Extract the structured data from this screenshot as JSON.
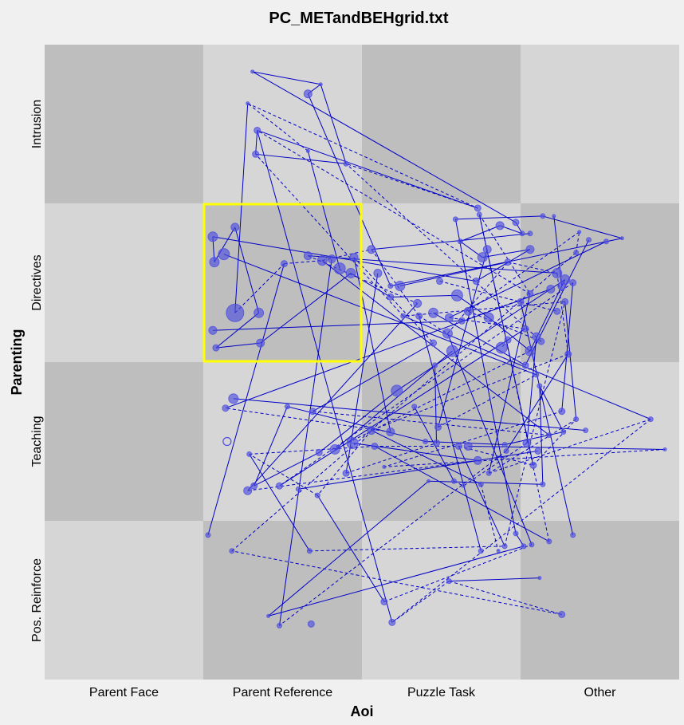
{
  "title": "PC_METandBEHgrid.txt",
  "colors": {
    "background": "#f0f0f0",
    "cell_light": "#d6d6d6",
    "cell_dark": "#bebebe",
    "highlight": "#ffff00",
    "path": "#0000c8",
    "marker_fill": "#4f4fe0"
  },
  "chart_data": {
    "type": "scatter",
    "title": "PC_METandBEHgrid.txt",
    "xlabel": "Aoi",
    "ylabel": "Parenting",
    "x_categories": [
      "Parent Face",
      "Parent Reference",
      "Puzzle Task",
      "Other"
    ],
    "y_categories": [
      "Pos. Reinforce",
      "Teaching",
      "Directives",
      "Intrusion"
    ],
    "xlim": [
      0,
      4
    ],
    "ylim": [
      0,
      4
    ],
    "grid_shading": [
      [
        "dark",
        "light",
        "dark",
        "light"
      ],
      [
        "light",
        "dark",
        "light",
        "dark"
      ],
      [
        "dark",
        "light",
        "dark",
        "light"
      ],
      [
        "light",
        "dark",
        "light",
        "dark"
      ]
    ],
    "highlight_cell": {
      "x": "Parent Reference",
      "y": "Directives",
      "color": "#ffff00"
    },
    "points": [
      [
        1.66,
        3.69,
        5
      ],
      [
        1.34,
        3.46,
        4
      ],
      [
        1.33,
        3.31,
        4
      ],
      [
        1.9,
        3.25,
        3
      ],
      [
        1.74,
        3.75,
        2
      ],
      [
        1.31,
        3.83,
        2
      ],
      [
        1.66,
        3.33,
        2
      ],
      [
        1.28,
        3.63,
        2
      ],
      [
        2.73,
        2.97,
        4
      ],
      [
        2.97,
        2.88,
        4
      ],
      [
        3.01,
        2.81,
        3
      ],
      [
        2.87,
        2.86,
        5
      ],
      [
        2.62,
        2.76,
        3
      ],
      [
        2.76,
        2.66,
        6
      ],
      [
        3.06,
        2.71,
        5
      ],
      [
        2.72,
        2.51,
        4
      ],
      [
        1.06,
        2.79,
        6
      ],
      [
        1.07,
        2.63,
        6
      ],
      [
        1.2,
        2.85,
        5
      ],
      [
        1.13,
        2.68,
        7
      ],
      [
        1.2,
        2.31,
        11
      ],
      [
        1.35,
        2.31,
        6
      ],
      [
        1.06,
        2.2,
        5
      ],
      [
        1.08,
        2.09,
        4
      ],
      [
        1.36,
        2.12,
        5
      ],
      [
        1.51,
        2.62,
        4
      ],
      [
        1.66,
        2.67,
        5
      ],
      [
        1.75,
        2.64,
        6
      ],
      [
        1.81,
        2.65,
        5
      ],
      [
        1.86,
        2.59,
        7
      ],
      [
        1.93,
        2.56,
        6
      ],
      [
        1.95,
        2.66,
        5
      ],
      [
        2.06,
        2.71,
        5
      ],
      [
        2.1,
        2.56,
        5
      ],
      [
        2.24,
        2.48,
        6
      ],
      [
        2.18,
        2.41,
        4
      ],
      [
        2.35,
        2.37,
        5
      ],
      [
        2.36,
        2.29,
        4
      ],
      [
        2.45,
        2.31,
        6
      ],
      [
        2.55,
        2.28,
        5
      ],
      [
        2.6,
        2.42,
        7
      ],
      [
        2.45,
        2.12,
        4
      ],
      [
        2.54,
        2.18,
        6
      ],
      [
        2.57,
        2.07,
        7
      ],
      [
        2.63,
        2.26,
        4
      ],
      [
        2.8,
        2.28,
        6
      ],
      [
        2.79,
        2.71,
        5
      ],
      [
        2.92,
        2.63,
        4
      ],
      [
        3.0,
        2.38,
        4
      ],
      [
        3.03,
        2.21,
        4
      ],
      [
        3.06,
        2.07,
        6
      ],
      [
        3.1,
        2.16,
        5
      ],
      [
        3.23,
        2.56,
        6
      ],
      [
        3.26,
        2.48,
        5
      ],
      [
        3.19,
        2.46,
        5
      ],
      [
        3.28,
        2.52,
        6
      ],
      [
        3.33,
        2.5,
        4
      ],
      [
        3.3,
        2.05,
        4
      ],
      [
        3.03,
        1.98,
        4
      ],
      [
        2.46,
        1.98,
        3
      ],
      [
        2.22,
        1.82,
        7
      ],
      [
        2.18,
        1.56,
        5
      ],
      [
        2.06,
        1.57,
        5
      ],
      [
        1.94,
        1.49,
        7
      ],
      [
        1.83,
        1.45,
        6
      ],
      [
        1.73,
        1.43,
        4
      ],
      [
        1.9,
        1.3,
        4
      ],
      [
        1.72,
        1.16,
        3
      ],
      [
        1.6,
        1.2,
        3
      ],
      [
        1.48,
        1.22,
        4
      ],
      [
        1.32,
        1.22,
        4
      ],
      [
        1.28,
        1.19,
        5
      ],
      [
        1.29,
        1.42,
        3
      ],
      [
        1.19,
        1.77,
        6
      ],
      [
        1.14,
        1.71,
        4
      ],
      [
        1.53,
        1.72,
        3
      ],
      [
        1.69,
        1.69,
        4
      ],
      [
        2.08,
        1.47,
        4
      ],
      [
        2.33,
        1.72,
        3
      ],
      [
        2.47,
        1.49,
        4
      ],
      [
        2.4,
        1.5,
        3
      ],
      [
        2.48,
        1.59,
        4
      ],
      [
        2.61,
        1.47,
        4
      ],
      [
        2.67,
        1.47,
        5
      ],
      [
        2.73,
        1.38,
        5
      ],
      [
        2.9,
        1.48,
        3
      ],
      [
        3.04,
        1.49,
        5
      ],
      [
        3.08,
        1.35,
        4
      ],
      [
        3.11,
        1.44,
        4
      ],
      [
        3.18,
        1.54,
        3
      ],
      [
        3.27,
        1.56,
        3
      ],
      [
        3.26,
        1.69,
        4
      ],
      [
        3.35,
        1.64,
        3
      ],
      [
        3.41,
        1.57,
        3
      ],
      [
        3.1,
        1.92,
        3
      ],
      [
        3.12,
        1.85,
        3
      ],
      [
        2.91,
        1.44,
        3
      ],
      [
        2.8,
        1.3,
        3
      ],
      [
        2.58,
        1.25,
        3
      ],
      [
        2.64,
        1.22,
        2
      ],
      [
        3.14,
        1.23,
        3
      ],
      [
        2.75,
        1.23,
        3
      ],
      [
        3.82,
        1.64,
        3
      ],
      [
        3.91,
        1.45,
        2
      ],
      [
        2.14,
        1.34,
        2
      ],
      [
        2.42,
        1.25,
        2
      ],
      [
        2.14,
        0.49,
        4
      ],
      [
        2.19,
        0.36,
        4
      ],
      [
        1.68,
        0.35,
        4
      ],
      [
        1.48,
        0.34,
        3
      ],
      [
        1.41,
        0.4,
        2
      ],
      [
        1.67,
        0.81,
        3
      ],
      [
        2.55,
        0.62,
        3
      ],
      [
        2.75,
        0.81,
        3
      ],
      [
        2.86,
        0.81,
        2
      ],
      [
        3.02,
        0.84,
        3
      ],
      [
        3.18,
        0.87,
        3
      ],
      [
        3.07,
        0.85,
        3
      ],
      [
        3.12,
        0.64,
        2
      ],
      [
        3.26,
        0.41,
        4
      ],
      [
        2.97,
        0.92,
        3
      ],
      [
        2.9,
        0.84,
        3
      ],
      [
        3.33,
        0.91,
        3
      ],
      [
        1.03,
        0.91,
        3
      ],
      [
        1.18,
        0.81,
        3
      ],
      [
        2.59,
        2.9,
        3
      ],
      [
        2.74,
        2.93,
        3
      ],
      [
        3.21,
        2.92,
        2
      ],
      [
        3.06,
        2.81,
        3
      ],
      [
        3.35,
        2.69,
        3
      ],
      [
        3.14,
        2.92,
        3
      ],
      [
        3.28,
        2.38,
        4
      ],
      [
        3.43,
        2.77,
        3
      ],
      [
        3.54,
        2.76,
        3
      ],
      [
        3.37,
        2.82,
        2
      ],
      [
        3.64,
        2.78,
        2
      ],
      [
        3.06,
        2.43,
        4
      ],
      [
        2.92,
        2.14,
        4
      ],
      [
        2.88,
        2.09,
        7
      ],
      [
        2.67,
        2.32,
        5
      ],
      [
        2.18,
        2.48,
        3
      ],
      [
        2.26,
        2.29,
        3
      ],
      [
        2.49,
        2.51,
        4
      ],
      [
        3.23,
        2.32,
        4
      ],
      [
        3.13,
        2.13,
        4
      ]
    ],
    "open_points": [
      [
        1.15,
        1.5,
        5
      ]
    ],
    "solid_path_order": [
      [
        1,
        2
      ],
      [
        2,
        3
      ],
      [
        3,
        4
      ],
      [
        4,
        5
      ],
      [
        5,
        9
      ],
      [
        9,
        10
      ],
      [
        10,
        11
      ],
      [
        11,
        12
      ],
      [
        12,
        13
      ],
      [
        13,
        14
      ],
      [
        14,
        15
      ],
      [
        15,
        16
      ],
      [
        16,
        17
      ],
      [
        17,
        18
      ],
      [
        18,
        21
      ],
      [
        21,
        23
      ],
      [
        23,
        24
      ],
      [
        24,
        30
      ],
      [
        30,
        35
      ],
      [
        35,
        40
      ],
      [
        40,
        45
      ],
      [
        45,
        50
      ],
      [
        50,
        55
      ],
      [
        55,
        60
      ],
      [
        60,
        65
      ],
      [
        65,
        70
      ],
      [
        70,
        75
      ],
      [
        75,
        80
      ],
      [
        80,
        85
      ],
      [
        85,
        90
      ],
      [
        90,
        95
      ],
      [
        95,
        100
      ],
      [
        100,
        105
      ],
      [
        105,
        110
      ],
      [
        110,
        115
      ],
      [
        115,
        120
      ],
      [
        120,
        125
      ],
      [
        125,
        130
      ],
      [
        130,
        135
      ],
      [
        135,
        140
      ],
      [
        140,
        145
      ],
      [
        145,
        149
      ],
      [
        22,
        44
      ],
      [
        26,
        52
      ],
      [
        31,
        61
      ],
      [
        33,
        66
      ],
      [
        36,
        71
      ],
      [
        41,
        76
      ],
      [
        46,
        81
      ],
      [
        51,
        86
      ],
      [
        56,
        91
      ],
      [
        57,
        96
      ],
      [
        62,
        101
      ],
      [
        67,
        106
      ],
      [
        72,
        111
      ],
      [
        77,
        116
      ],
      [
        82,
        121
      ],
      [
        87,
        126
      ],
      [
        92,
        131
      ],
      [
        97,
        136
      ],
      [
        102,
        141
      ],
      [
        107,
        146
      ],
      [
        112,
        118
      ],
      [
        27,
        89
      ],
      [
        34,
        47
      ],
      [
        38,
        58
      ],
      [
        43,
        64
      ],
      [
        49,
        69
      ],
      [
        54,
        74
      ],
      [
        59,
        79
      ],
      [
        63,
        84
      ],
      [
        68,
        88
      ],
      [
        73,
        93
      ],
      [
        78,
        98
      ],
      [
        83,
        103
      ],
      [
        19,
        94
      ],
      [
        28,
        109
      ],
      [
        37,
        113
      ],
      [
        42,
        117
      ],
      [
        48,
        122
      ],
      [
        53,
        127
      ],
      [
        58,
        132
      ],
      [
        25,
        123
      ],
      [
        32,
        128
      ],
      [
        39,
        133
      ],
      [
        6,
        29
      ],
      [
        7,
        20
      ],
      [
        8,
        1
      ]
    ],
    "dashed_path_order": [
      [
        6,
        7
      ],
      [
        7,
        8
      ],
      [
        8,
        3
      ],
      [
        20,
        25
      ],
      [
        25,
        27
      ],
      [
        27,
        32
      ],
      [
        32,
        37
      ],
      [
        37,
        42
      ],
      [
        42,
        47
      ],
      [
        47,
        52
      ],
      [
        52,
        57
      ],
      [
        57,
        62
      ],
      [
        62,
        67
      ],
      [
        67,
        72
      ],
      [
        72,
        77
      ],
      [
        77,
        82
      ],
      [
        82,
        87
      ],
      [
        87,
        92
      ],
      [
        92,
        97
      ],
      [
        97,
        102
      ],
      [
        102,
        107
      ],
      [
        107,
        112
      ],
      [
        112,
        119
      ],
      [
        119,
        124
      ],
      [
        124,
        129
      ],
      [
        129,
        134
      ],
      [
        134,
        139
      ],
      [
        139,
        144
      ],
      [
        144,
        148
      ],
      [
        26,
        36
      ],
      [
        31,
        41
      ],
      [
        39,
        49
      ],
      [
        44,
        54
      ],
      [
        50,
        64
      ],
      [
        56,
        69
      ],
      [
        61,
        74
      ],
      [
        66,
        79
      ],
      [
        71,
        84
      ],
      [
        76,
        89
      ],
      [
        81,
        94
      ],
      [
        86,
        99
      ],
      [
        91,
        104
      ],
      [
        96,
        109
      ],
      [
        101,
        114
      ],
      [
        106,
        117
      ],
      [
        111,
        121
      ],
      [
        116,
        126
      ],
      [
        121,
        131
      ],
      [
        126,
        136
      ],
      [
        131,
        141
      ],
      [
        136,
        146
      ],
      [
        141,
        147
      ],
      [
        103,
        104
      ],
      [
        98,
        99
      ],
      [
        137,
        138
      ],
      [
        142,
        143
      ]
    ]
  }
}
